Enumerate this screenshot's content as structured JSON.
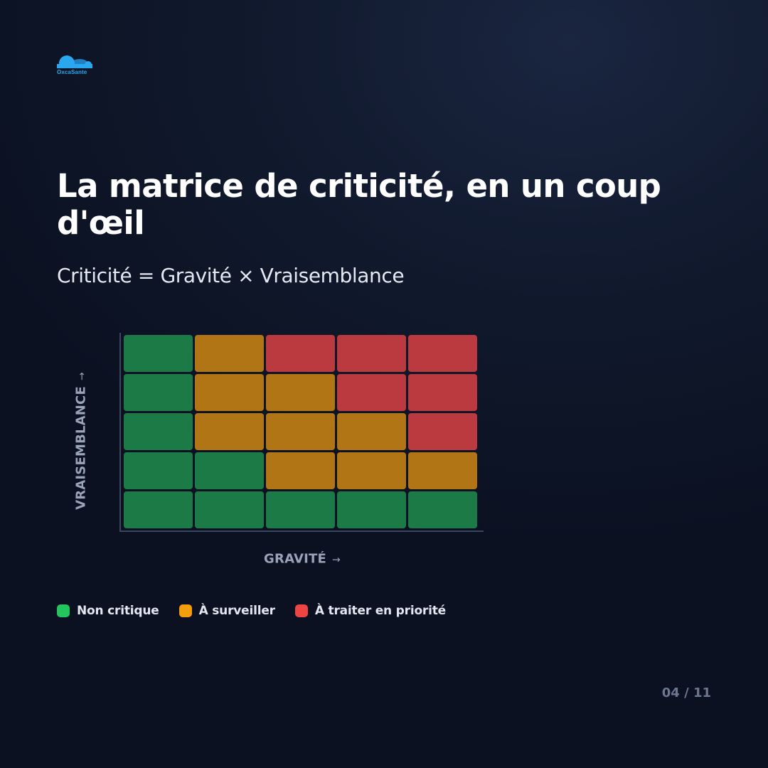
{
  "brand": {
    "name": "OxcaSante"
  },
  "title": "La matrice de criticité, en un coup d'œil",
  "subtitle": "Criticité = Gravité × Vraisemblance",
  "chart_data": {
    "type": "heatmap",
    "xlabel": "GRAVITÉ",
    "ylabel": "VRAISEMBLANCE",
    "x_direction_arrow": "→",
    "y_direction_arrow": "→",
    "levels": [
      {
        "key": "non_critique",
        "label": "Non critique",
        "color": "#1c7a47",
        "legend_color": "#22c55e"
      },
      {
        "key": "surveiller",
        "label": "À surveiller",
        "color": "#b27515",
        "legend_color": "#f59e0b"
      },
      {
        "key": "priorite",
        "label": "À traiter en priorité",
        "color": "#bb3a3f",
        "legend_color": "#ef4444"
      }
    ],
    "rows_top_to_bottom": [
      [
        "non_critique",
        "surveiller",
        "priorite",
        "priorite",
        "priorite"
      ],
      [
        "non_critique",
        "surveiller",
        "surveiller",
        "priorite",
        "priorite"
      ],
      [
        "non_critique",
        "surveiller",
        "surveiller",
        "surveiller",
        "priorite"
      ],
      [
        "non_critique",
        "non_critique",
        "surveiller",
        "surveiller",
        "surveiller"
      ],
      [
        "non_critique",
        "non_critique",
        "non_critique",
        "non_critique",
        "non_critique"
      ]
    ]
  },
  "pagination": "04 / 11"
}
